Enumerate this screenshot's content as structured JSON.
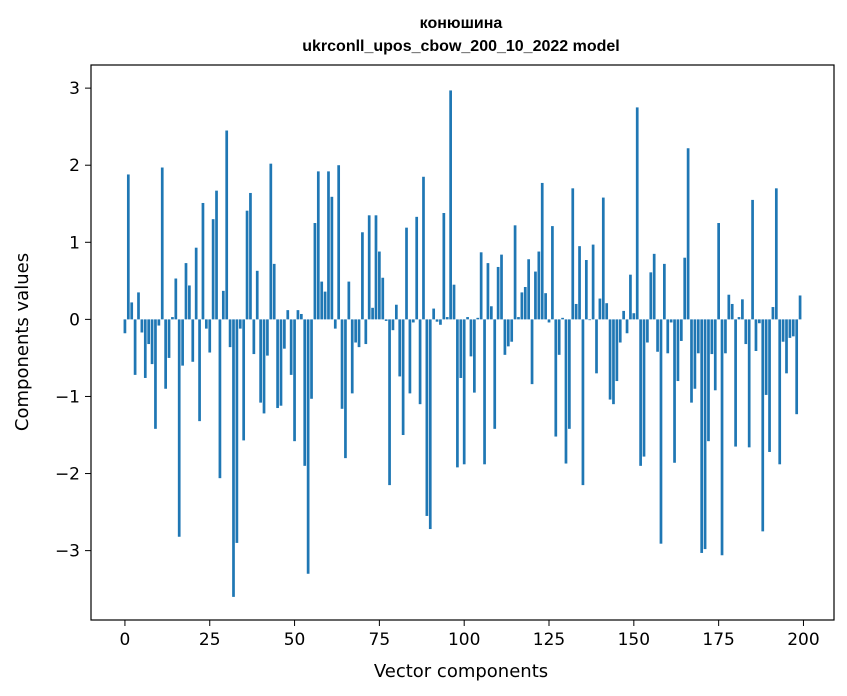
{
  "chart_data": {
    "type": "bar",
    "title": "конюшина",
    "subtitle": "ukrconll_upos_cbow_200_10_2022 model",
    "xlabel": "Vector components",
    "ylabel": "Components values",
    "xlim": [
      -10,
      209
    ],
    "ylim": [
      -3.9,
      3.3
    ],
    "xticks": [
      0,
      25,
      50,
      75,
      100,
      125,
      150,
      175,
      200
    ],
    "yticks": [
      -3,
      -2,
      -1,
      0,
      1,
      2,
      3
    ],
    "ytick_labels": [
      "−3",
      "−2",
      "−1",
      "0",
      "1",
      "2",
      "3"
    ],
    "grid": false,
    "bar_color": "#1f77b4",
    "x": [
      0,
      1,
      2,
      3,
      4,
      5,
      6,
      7,
      8,
      9,
      10,
      11,
      12,
      13,
      14,
      15,
      16,
      17,
      18,
      19,
      20,
      21,
      22,
      23,
      24,
      25,
      26,
      27,
      28,
      29,
      30,
      31,
      32,
      33,
      34,
      35,
      36,
      37,
      38,
      39,
      40,
      41,
      42,
      43,
      44,
      45,
      46,
      47,
      48,
      49,
      50,
      51,
      52,
      53,
      54,
      55,
      56,
      57,
      58,
      59,
      60,
      61,
      62,
      63,
      64,
      65,
      66,
      67,
      68,
      69,
      70,
      71,
      72,
      73,
      74,
      75,
      76,
      77,
      78,
      79,
      80,
      81,
      82,
      83,
      84,
      85,
      86,
      87,
      88,
      89,
      90,
      91,
      92,
      93,
      94,
      95,
      96,
      97,
      98,
      99,
      100,
      101,
      102,
      103,
      104,
      105,
      106,
      107,
      108,
      109,
      110,
      111,
      112,
      113,
      114,
      115,
      116,
      117,
      118,
      119,
      120,
      121,
      122,
      123,
      124,
      125,
      126,
      127,
      128,
      129,
      130,
      131,
      132,
      133,
      134,
      135,
      136,
      137,
      138,
      139,
      140,
      141,
      142,
      143,
      144,
      145,
      146,
      147,
      148,
      149,
      150,
      151,
      152,
      153,
      154,
      155,
      156,
      157,
      158,
      159,
      160,
      161,
      162,
      163,
      164,
      165,
      166,
      167,
      168,
      169,
      170,
      171,
      172,
      173,
      174,
      175,
      176,
      177,
      178,
      179,
      180,
      181,
      182,
      183,
      184,
      185,
      186,
      187,
      188,
      189,
      190,
      191,
      192,
      193,
      194,
      195,
      196,
      197,
      198,
      199
    ],
    "values": [
      -0.18,
      1.88,
      0.22,
      -0.72,
      0.35,
      -0.17,
      -0.76,
      -0.32,
      -0.58,
      -1.42,
      -0.08,
      1.97,
      -0.9,
      -0.5,
      0.03,
      0.53,
      -2.82,
      -0.6,
      0.73,
      0.44,
      -0.55,
      0.93,
      -1.32,
      1.51,
      -0.12,
      -0.43,
      1.3,
      1.67,
      -2.06,
      0.37,
      2.45,
      -0.36,
      -3.6,
      -2.9,
      -0.12,
      -1.57,
      1.41,
      1.64,
      -0.45,
      0.63,
      -1.08,
      -1.22,
      -0.47,
      2.02,
      0.72,
      -1.15,
      -1.12,
      -0.38,
      0.12,
      -0.72,
      -1.58,
      0.12,
      0.07,
      -1.9,
      -3.3,
      -1.03,
      1.25,
      1.92,
      0.49,
      0.36,
      1.92,
      1.59,
      -0.12,
      2.0,
      -1.16,
      -1.8,
      0.49,
      -0.96,
      -0.3,
      -0.36,
      1.13,
      -0.32,
      1.35,
      0.15,
      1.35,
      0.88,
      0.54,
      -0.02,
      -2.15,
      -0.14,
      0.19,
      -0.74,
      -1.5,
      1.19,
      -0.96,
      -0.04,
      1.33,
      -1.1,
      1.85,
      -2.55,
      -2.72,
      0.14,
      -0.03,
      -0.07,
      1.38,
      0.03,
      2.97,
      0.45,
      -1.92,
      -0.76,
      -1.88,
      0.03,
      -0.48,
      -0.95,
      0.02,
      0.87,
      -1.88,
      0.73,
      0.17,
      -1.42,
      0.68,
      0.84,
      -0.46,
      -0.35,
      -0.29,
      1.22,
      0.03,
      0.35,
      0.42,
      0.78,
      -0.84,
      0.62,
      0.88,
      1.77,
      0.34,
      -0.04,
      1.21,
      -1.52,
      -0.46,
      0.02,
      -1.87,
      -1.42,
      1.7,
      0.2,
      0.95,
      -2.15,
      0.77,
      -0.01,
      0.97,
      -0.7,
      0.27,
      1.58,
      0.21,
      -1.04,
      -1.1,
      -0.8,
      -0.3,
      0.11,
      -0.18,
      0.58,
      0.08,
      2.75,
      -1.9,
      -1.78,
      -0.3,
      0.61,
      0.85,
      -0.42,
      -2.91,
      0.72,
      -0.44,
      -0.04,
      -1.86,
      -0.8,
      -0.28,
      0.8,
      2.22,
      -1.08,
      -0.9,
      -0.44,
      -3.03,
      -2.98,
      -1.58,
      -0.45,
      -0.92,
      1.25,
      -3.06,
      -0.44,
      0.32,
      0.2,
      -1.65,
      0.03,
      0.26,
      -0.32,
      -1.66,
      1.55,
      -0.41,
      -0.05,
      -2.75,
      -0.98,
      -1.72,
      0.16,
      1.7,
      -1.88,
      -0.29,
      -0.7,
      -0.24,
      -0.22,
      -1.23,
      0.31
    ]
  }
}
